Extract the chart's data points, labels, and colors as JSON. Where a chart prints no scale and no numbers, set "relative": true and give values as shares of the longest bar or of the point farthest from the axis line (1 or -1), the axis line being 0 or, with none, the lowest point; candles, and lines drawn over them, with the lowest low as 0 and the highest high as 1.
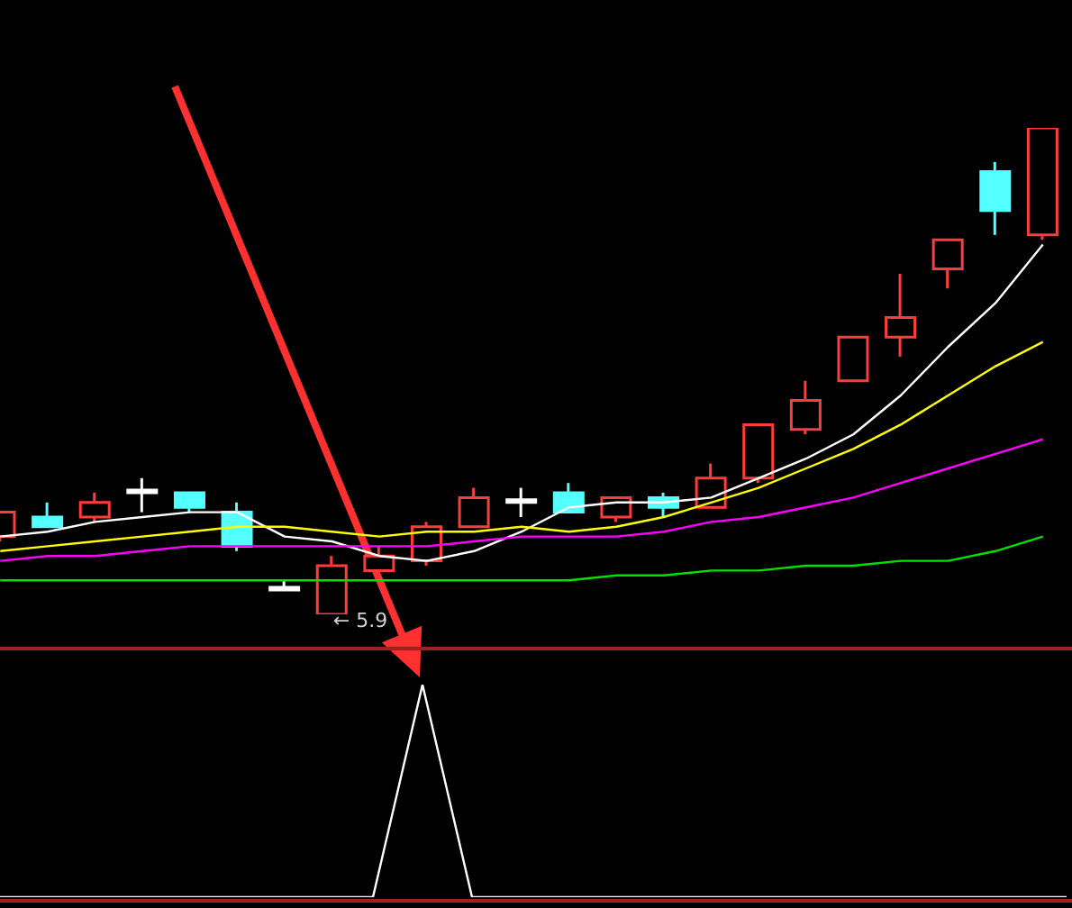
{
  "chart_data": [
    {
      "type": "candlestick",
      "relative": true,
      "legend": false,
      "categories": [
        null,
        null,
        null,
        null,
        null,
        null,
        null,
        null,
        null,
        null,
        null,
        null,
        null,
        null,
        null,
        null,
        null,
        null,
        null,
        null,
        null,
        null,
        null
      ],
      "ohlc": [
        [
          0.16,
          0.21,
          0.15,
          0.21
        ],
        [
          0.2,
          0.23,
          0.18,
          0.18
        ],
        [
          0.2,
          0.25,
          0.19,
          0.23
        ],
        [
          0.25,
          0.28,
          0.21,
          0.25
        ],
        [
          0.25,
          0.25,
          0.21,
          0.22
        ],
        [
          0.21,
          0.23,
          0.13,
          0.14
        ],
        [
          0.05,
          0.07,
          0.05,
          0.05
        ],
        [
          0,
          0.12,
          0,
          0.1
        ],
        [
          0.09,
          0.14,
          0.09,
          0.12
        ],
        [
          0.11,
          0.19,
          0.1,
          0.18
        ],
        [
          0.18,
          0.26,
          0.18,
          0.24
        ],
        [
          0.23,
          0.26,
          0.2,
          0.23
        ],
        [
          0.25,
          0.27,
          0.21,
          0.21
        ],
        [
          0.2,
          0.24,
          0.19,
          0.24
        ],
        [
          0.24,
          0.25,
          0.2,
          0.22
        ],
        [
          0.22,
          0.31,
          0.22,
          0.28
        ],
        [
          0.28,
          0.39,
          0.27,
          0.39
        ],
        [
          0.38,
          0.48,
          0.37,
          0.44
        ],
        [
          0.48,
          0.57,
          0.48,
          0.57
        ],
        [
          0.57,
          0.7,
          0.53,
          0.61
        ],
        [
          0.71,
          0.77,
          0.67,
          0.77
        ],
        [
          0.91,
          0.93,
          0.78,
          0.83
        ],
        [
          0.78,
          1,
          0.77,
          1
        ]
      ],
      "colors": [
        "#ff3c3c",
        "#54ffff",
        "#ff3c3c",
        "#ffffff",
        "#54ffff",
        "#54ffff",
        "#ffffff",
        "#ff3c3c",
        "#ff3c3c",
        "#ff3c3c",
        "#ff3c3c",
        "#ffffff",
        "#54ffff",
        "#ff3c3c",
        "#54ffff",
        "#ff3c3c",
        "#ff3c3c",
        "#ff3c3c",
        "#ff3c3c",
        "#ff3c3c",
        "#ff3c3c",
        "#54ffff",
        "#ff3c3c"
      ],
      "series": [
        {
          "type": "line",
          "color": "#ffffff",
          "values": [
            0.16,
            0.17,
            0.19,
            0.2,
            0.21,
            0.21,
            0.16,
            0.15,
            0.12,
            0.11,
            0.13,
            0.17,
            0.22,
            0.23,
            0.23,
            0.24,
            0.28,
            0.32,
            0.37,
            0.45,
            0.55,
            0.64,
            0.76
          ]
        },
        {
          "type": "line",
          "color": "#ffff00",
          "values": [
            0.13,
            0.14,
            0.15,
            0.16,
            0.17,
            0.18,
            0.18,
            0.17,
            0.16,
            0.17,
            0.17,
            0.18,
            0.17,
            0.18,
            0.2,
            0.23,
            0.26,
            0.3,
            0.34,
            0.39,
            0.45,
            0.51,
            0.56
          ]
        },
        {
          "type": "line",
          "color": "#ff00ff",
          "values": [
            0.11,
            0.12,
            0.12,
            0.13,
            0.14,
            0.14,
            0.14,
            0.14,
            0.14,
            0.14,
            0.15,
            0.16,
            0.16,
            0.16,
            0.17,
            0.19,
            0.2,
            0.22,
            0.24,
            0.27,
            0.3,
            0.33,
            0.36
          ]
        },
        {
          "type": "line",
          "color": "#00e000",
          "values": [
            0.07,
            0.07,
            0.07,
            0.07,
            0.07,
            0.07,
            0.07,
            0.07,
            0.07,
            0.07,
            0.07,
            0.07,
            0.07,
            0.08,
            0.08,
            0.09,
            0.09,
            0.1,
            0.1,
            0.11,
            0.11,
            0.13,
            0.16
          ]
        }
      ],
      "annotations": [
        "← 5.9"
      ]
    },
    {
      "type": "line",
      "relative": true,
      "legend": false,
      "categories": [
        null,
        null,
        null,
        null,
        null,
        null,
        null,
        null,
        null,
        null,
        null,
        null,
        null,
        null,
        null,
        null,
        null,
        null,
        null,
        null,
        null,
        null,
        null
      ],
      "color": "#ffffff",
      "values": [
        0,
        0,
        0,
        0,
        0,
        0,
        0,
        0,
        0,
        1,
        0,
        0,
        0,
        0,
        0,
        0,
        0,
        0,
        0,
        0,
        0,
        0,
        0
      ]
    }
  ]
}
